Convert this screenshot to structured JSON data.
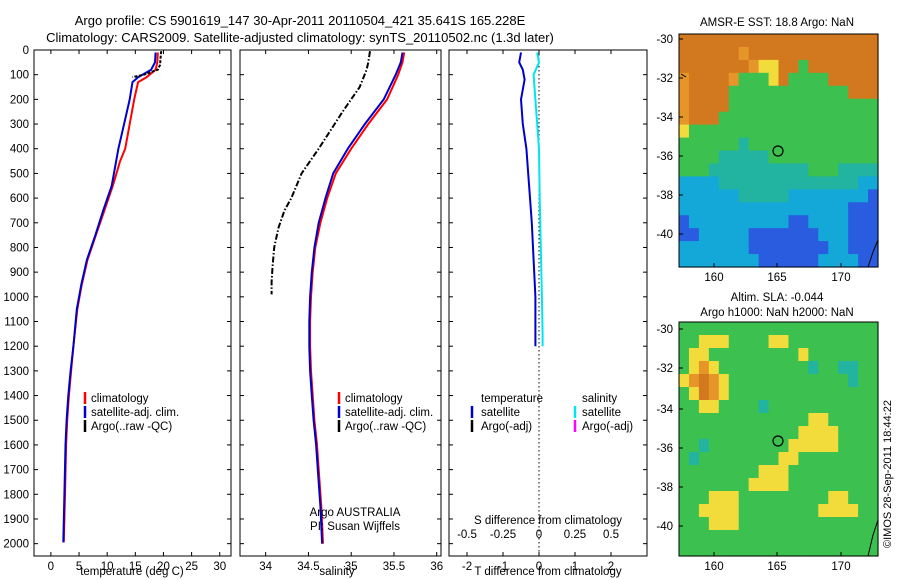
{
  "header": {
    "line1": "Argo profile: CS 5901619_147 30-Apr-2011 20110504_421 35.641S 165.228E",
    "line2": "Climatology: CARS2009. Satellite-adjusted climatology: synTS_20110502.nc (1.3d later)"
  },
  "stamp": "©IMOS 28-Sep-2011 18:44:22",
  "colors": {
    "climatology": "#ff0000",
    "satellite": "#0000cc",
    "argo": "#000000",
    "satellite_s": "#00e5ee",
    "argo_s": "#ff00ff"
  },
  "legends": {
    "climatology": "climatology",
    "satellite_adj": "satellite-adj. clim.",
    "argo": "Argo(..raw -QC)",
    "temperature": "temperature",
    "salinity": "salinity",
    "satellite": "satellite",
    "argo_adj": "Argo(-adj)"
  },
  "labels": {
    "temp_x": "temperature (deg C)",
    "sal_x": "salinity",
    "diff_x_bottom": "T difference from climatology",
    "diff_x_top": "S difference from climatology",
    "argo_agency": "Argo AUSTRALIA",
    "pi": "PI: Susan Wijffels"
  },
  "maps": {
    "sst_title": "AMSR-E SST: 18.8 Argo: NaN",
    "sla_title1": "Altim. SLA: -0.044",
    "sla_title2": "Argo h1000: NaN h2000: NaN",
    "y_ticks": [
      "-30",
      "-32",
      "-34",
      "-36",
      "-38",
      "-40"
    ],
    "x_ticks": [
      "160",
      "165",
      "170"
    ],
    "sst_grid": [
      "OOOOOOOOOOOOOOOOOOOO",
      "OOOOOOoOOOOOOOOOOOOO",
      "OOOOOOOoYYOOGOOOOOOO",
      "oOOOOoGGGYOGGGGOOOOO",
      "oOOOOGGGGGGGGGGGGOOO",
      "oOOOOGGGGGGGGGGGGGGG",
      "oOOOGGGGGGGGGGGGGGGG",
      "YGGGGGGGGGGGGGGGGGGG",
      "GGGGGGTGGGGGGGGGGGGG",
      "GGGGTTTTTGGGGGGGGGGG",
      "GGGTTTTTTTTTTGGGTTTT",
      "CCCCTTTTTTTTTTTTTTCC",
      "CCCCCCTTTTTCCCCCCCCB",
      "CCCCCCCCCCCCCCCCCBBB",
      "BCCCCCCCCCCBBCCCCBBB",
      "BBCCCCCBBBBBBBCCCBBB",
      "CCCCCCCBBBBBBBBCCBBB",
      "CCCCCCCCBBBBBBCCCCBB"
    ],
    "sla_grid": [
      "GGGGGGGGGGGGGGGGGGGG",
      "GGYYYGGGGYYGGGGGGGGG",
      "GYYGGGGGGGGGYGGGGGGG",
      "GYoYGGGGGGGGGTGGTTGG",
      "YoOoYGGGGGGGGGGGGTGG",
      "GYOoYGGGGGGGGGGGGGGG",
      "GGYYGGGGTGGGGGGGGGGG",
      "GGGGGGGGGGGGGYYGGGGG",
      "GGGGGGGGGGGGYYYYGGGG",
      "GGTGGGGGGGGYYYYYGGGG",
      "GTGGGGGGGGYYGGGGGGGG",
      "GGGGGGGGYYYGGGGGGGGG",
      "GGGGGGGYYYYGGGGGGGGG",
      "GGGYYYGGGGGGGGGYYGGG",
      "GGYYYYGGGGGGGGYYYYGG",
      "GGGYYYGGGGGGGGGGGGGG",
      "GGGGGGGGGGGGGGGGGGGG",
      "GGGGGGGGGGGGGGGGGGGG"
    ],
    "palette": {
      "O": "#d2781e",
      "o": "#e69628",
      "Y": "#f2dc3c",
      "G": "#3cc050",
      "T": "#22b4a0",
      "C": "#14a8d8",
      "B": "#2a5ce0"
    }
  },
  "chart_data": [
    {
      "type": "line",
      "xlabel": "temperature (deg C)",
      "ylabel": "",
      "xlim": [
        -3,
        32
      ],
      "ylim": [
        0,
        2050
      ],
      "xticks": [
        0,
        5,
        10,
        15,
        20,
        25,
        30
      ],
      "yticks": [
        0,
        100,
        200,
        300,
        400,
        500,
        600,
        700,
        800,
        900,
        1000,
        1100,
        1200,
        1300,
        1400,
        1500,
        1600,
        1700,
        1800,
        1900,
        2000
      ],
      "series": [
        {
          "name": "climatology",
          "x": [
            19.0,
            18.9,
            18.6,
            17.0,
            15.5,
            14.8,
            14.0,
            13.2,
            12.3,
            11.0,
            9.5,
            8.0,
            6.5,
            5.5,
            4.7,
            4.0,
            3.6,
            3.2,
            2.9,
            2.7,
            2.5,
            2.3
          ],
          "y": [
            10,
            50,
            80,
            110,
            130,
            200,
            300,
            400,
            450,
            550,
            650,
            750,
            850,
            950,
            1050,
            1200,
            1300,
            1400,
            1500,
            1600,
            1800,
            1995
          ]
        },
        {
          "name": "satellite-adj. clim.",
          "x": [
            18.6,
            18.5,
            17.8,
            15.5,
            14.5,
            14.0,
            13.0,
            12.0,
            10.8,
            9.3,
            7.9,
            6.4,
            5.4,
            4.6,
            4.0,
            3.5,
            3.1,
            2.8,
            2.6,
            2.4,
            2.2
          ],
          "y": [
            10,
            50,
            80,
            110,
            130,
            200,
            300,
            400,
            550,
            650,
            750,
            850,
            950,
            1050,
            1200,
            1300,
            1400,
            1500,
            1600,
            1800,
            1995
          ]
        },
        {
          "name": "Argo(..raw -QC)",
          "x": [
            19.6,
            19.5,
            19.4,
            19.0,
            16.5,
            14.5
          ],
          "y": [
            5,
            30,
            60,
            80,
            100,
            110
          ]
        }
      ]
    },
    {
      "type": "line",
      "xlabel": "salinity",
      "ylabel": "",
      "xlim": [
        33.7,
        36.05
      ],
      "ylim": [
        0,
        2050
      ],
      "xticks": [
        34,
        34.5,
        35,
        35.5,
        36
      ],
      "series": [
        {
          "name": "climatology",
          "x": [
            35.62,
            35.6,
            35.55,
            35.42,
            35.2,
            35.0,
            34.82,
            34.72,
            34.64,
            34.58,
            34.55,
            34.53,
            34.52,
            34.52,
            34.53,
            34.55,
            34.57,
            34.6,
            34.62,
            34.65,
            34.67
          ],
          "y": [
            10,
            50,
            100,
            200,
            300,
            400,
            500,
            600,
            700,
            800,
            900,
            1000,
            1100,
            1200,
            1300,
            1400,
            1500,
            1600,
            1700,
            1850,
            2000
          ]
        },
        {
          "name": "satellite-adj. clim.",
          "x": [
            35.6,
            35.58,
            35.52,
            35.38,
            35.16,
            34.96,
            34.79,
            34.7,
            34.62,
            34.57,
            34.54,
            34.52,
            34.51,
            34.51,
            34.52,
            34.54,
            34.56,
            34.59,
            34.61,
            34.64,
            34.66
          ],
          "y": [
            10,
            50,
            100,
            200,
            300,
            400,
            500,
            600,
            700,
            800,
            900,
            1000,
            1100,
            1200,
            1300,
            1400,
            1500,
            1600,
            1700,
            1850,
            2000
          ]
        },
        {
          "name": "Argo(..raw -QC)",
          "x": [
            35.22,
            35.2,
            35.18,
            35.1,
            34.9,
            34.62,
            34.42,
            34.3,
            34.22,
            34.15,
            34.1,
            34.08,
            34.07,
            34.07
          ],
          "y": [
            5,
            50,
            80,
            150,
            250,
            400,
            500,
            600,
            650,
            720,
            800,
            880,
            940,
            990
          ]
        }
      ]
    },
    {
      "type": "line",
      "xlabel": "T difference from climatology",
      "x2label": "S difference from climatology",
      "xlim": [
        -2.5,
        3
      ],
      "ylim": [
        0,
        2050
      ],
      "xticks": [
        -2,
        -1,
        0,
        1,
        2
      ],
      "x2ticks": [
        "-0.5",
        "-0.25",
        "0",
        "0.25",
        "0.5"
      ],
      "series": [
        {
          "name": "satellite",
          "variable": "temperature",
          "x": [
            -0.5,
            -0.55,
            -0.45,
            -0.4,
            -0.5,
            -0.45,
            -0.35,
            -0.3,
            -0.25,
            -0.2,
            -0.15,
            -0.1,
            -0.1
          ],
          "y": [
            10,
            50,
            80,
            120,
            200,
            300,
            400,
            500,
            600,
            700,
            850,
            1000,
            1200
          ]
        },
        {
          "name": "satellite",
          "variable": "salinity",
          "x": [
            -0.05,
            0.0,
            -0.15,
            -0.1,
            -0.05,
            0.0,
            0.02,
            0.05,
            0.08,
            0.1,
            0.1
          ],
          "y": [
            10,
            50,
            100,
            200,
            300,
            400,
            600,
            800,
            1000,
            1150,
            1200
          ]
        }
      ]
    }
  ]
}
